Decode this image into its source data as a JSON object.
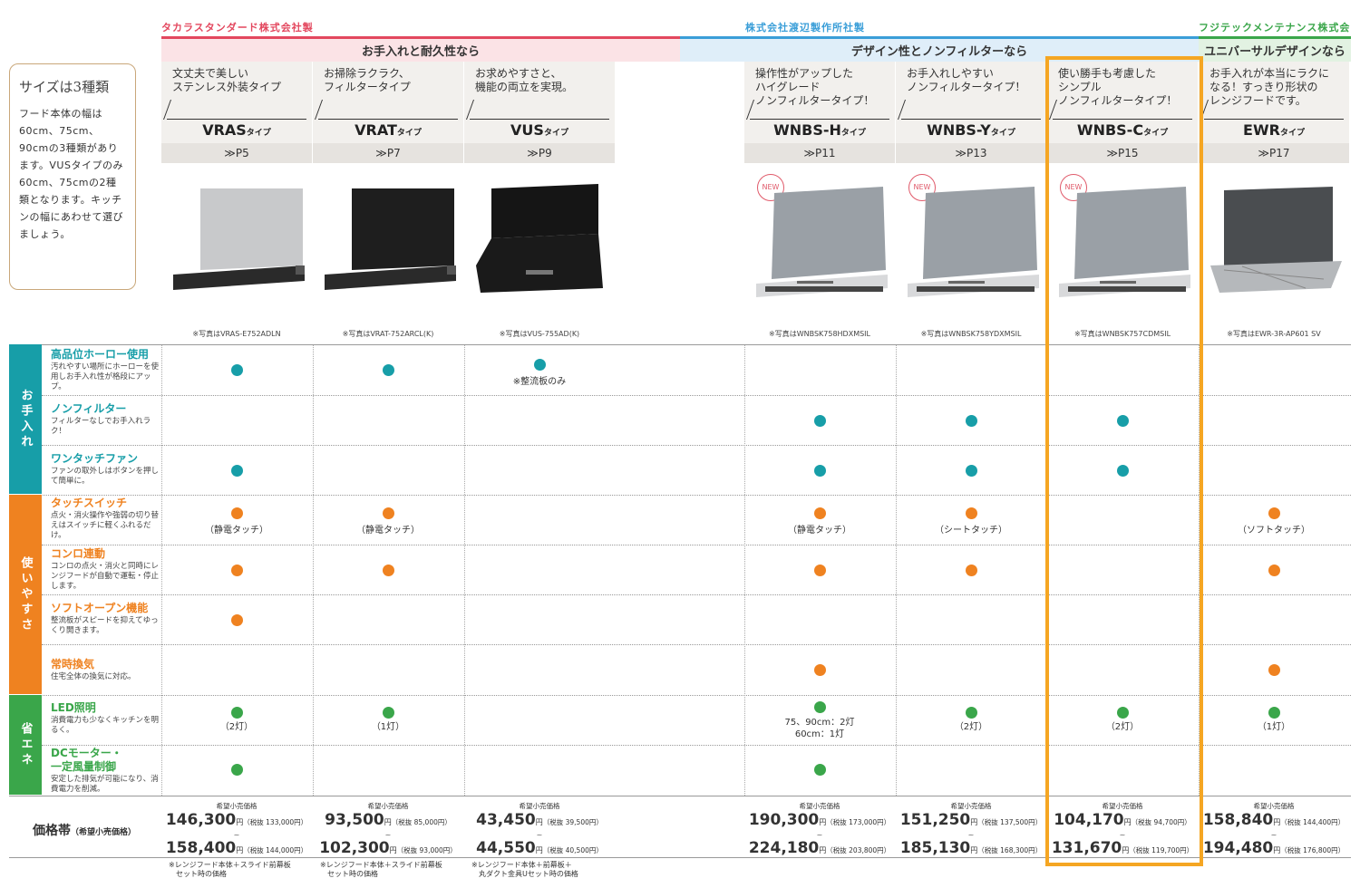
{
  "makers": [
    {
      "name": "タカラスタンダード株式会社製",
      "color": "#e3475e"
    },
    {
      "name": "株式会社渡辺製作所社製",
      "color": "#3a9ed8"
    },
    {
      "name": "フジテックメンテナンス株式会社製",
      "color": "#3aa64a"
    }
  ],
  "bands": [
    "お手入れと耐久性なら",
    "デザイン性とノンフィルターなら",
    "ユニバーサルデザインなら"
  ],
  "size_box": {
    "title": "サイズは3種類",
    "body": "フード本体の幅は60cm、75cm、90cmの3種類があります。VUSタイプのみ60cm、75cmの2種類となります。キッチンの幅にあわせて選びましょう。"
  },
  "products": [
    {
      "desc": "文丈夫で美しい\nステンレス外装タイプ",
      "name": "VRAS",
      "suffix": "タイプ",
      "page": "≫P5",
      "photo": "※写真はVRAS-E752ADLN",
      "new": ""
    },
    {
      "desc": "お掃除ラクラク、\nフィルタータイプ",
      "name": "VRAT",
      "suffix": "タイプ",
      "page": "≫P7",
      "photo": "※写真はVRAT-752ARCL(K)",
      "new": ""
    },
    {
      "desc": "お求めやすさと、\n機能の両立を実現。",
      "name": "VUS",
      "suffix": "タイプ",
      "page": "≫P9",
      "photo": "※写真はVUS-755AD(K)",
      "new": ""
    },
    {
      "desc": "操作性がアップした\nハイグレード\nノンフィルタータイプ！",
      "name": "WNBS-H",
      "suffix": "タイプ",
      "page": "≫P11",
      "photo": "※写真はWNBSK758HDXMSIL",
      "new": "NEW"
    },
    {
      "desc": "お手入れしやすい\nノンフィルタータイプ！",
      "name": "WNBS-Y",
      "suffix": "タイプ",
      "page": "≫P13",
      "photo": "※写真はWNBSK758YDXMSIL",
      "new": "NEW"
    },
    {
      "desc": "使い勝手も考慮した\nシンプル\nノンフィルタータイプ！",
      "name": "WNBS-C",
      "suffix": "タイプ",
      "page": "≫P15",
      "photo": "※写真はWNBSK757CDMSIL",
      "new": "NEW"
    },
    {
      "desc": "お手入れが本当にラクに\nなる！すっきり形状の\nレンジフードです。",
      "name": "EWR",
      "suffix": "タイプ",
      "page": "≫P17",
      "photo": "※写真はEWR-3R-AP601 SV",
      "new": ""
    }
  ],
  "categories": [
    {
      "label": "お手入れ",
      "color": "#179ea8"
    },
    {
      "label": "使いやすさ",
      "color": "#ef8220"
    },
    {
      "label": "省エネ",
      "color": "#3aa64a"
    }
  ],
  "features": [
    {
      "title": "高品位ホーロー使用",
      "desc": "汚れやすい場所にホーローを使用しお手入れ性が格段にアップ。",
      "color": "#179ea8"
    },
    {
      "title": "ノンフィルター",
      "desc": "フィルターなしでお手入れラク！",
      "color": "#179ea8"
    },
    {
      "title": "ワンタッチファン",
      "desc": "ファンの取外しはボタンを押して簡単に。",
      "color": "#179ea8"
    },
    {
      "title": "タッチスイッチ",
      "desc": "点火・消火操作や強弱の切り替えはスイッチに軽くふれるだけ。",
      "color": "#ef8220"
    },
    {
      "title": "コンロ連動",
      "desc": "コンロの点火・消火と同時にレンジフードが自動で運転・停止します。",
      "color": "#ef8220"
    },
    {
      "title": "ソフトオープン機能",
      "desc": "整流板がスピードを抑えてゆっくり開きます。",
      "color": "#ef8220"
    },
    {
      "title": "常時換気",
      "desc": "住宅全体の換気に対応。",
      "color": "#ef8220"
    },
    {
      "title": "LED照明",
      "desc": "消費電力も少なくキッチンを明るく。",
      "color": "#3aa64a"
    },
    {
      "title": "DCモーター・\n一定風量制御",
      "desc": "安定した排気が可能になり、消費電力を削減。",
      "color": "#3aa64a"
    }
  ],
  "notes": {
    "vus_enamel": "※整流板のみ",
    "touch": [
      "（静電タッチ）",
      "（静電タッチ）",
      "",
      "（静電タッチ）",
      "（シートタッチ）",
      "",
      "（ソフトタッチ）"
    ],
    "led": [
      "（2灯）",
      "（1灯）",
      "",
      "75、90cm：2灯\n60cm：1灯",
      "（2灯）",
      "（2灯）",
      "（1灯）"
    ]
  },
  "price_heading": "価格帯",
  "price_heading_sub": "（希望小売価格）",
  "price_label": "希望小売価格",
  "prices": [
    {
      "lo": "146,300",
      "lo_tax": "（税抜 133,000円）",
      "hi": "158,400",
      "hi_tax": "（税抜 144,000円）"
    },
    {
      "lo": "93,500",
      "lo_tax": "（税抜 85,000円）",
      "hi": "102,300",
      "hi_tax": "（税抜 93,000円）"
    },
    {
      "lo": "43,450",
      "lo_tax": "（税抜 39,500円）",
      "hi": "44,550",
      "hi_tax": "（税抜 40,500円）"
    },
    {
      "lo": "190,300",
      "lo_tax": "（税抜 173,000円）",
      "hi": "224,180",
      "hi_tax": "（税抜 203,800円）"
    },
    {
      "lo": "151,250",
      "lo_tax": "（税抜 137,500円）",
      "hi": "185,130",
      "hi_tax": "（税抜 168,300円）"
    },
    {
      "lo": "104,170",
      "lo_tax": "（税抜 94,700円）",
      "hi": "131,670",
      "hi_tax": "（税抜 119,700円）"
    },
    {
      "lo": "158,840",
      "lo_tax": "（税抜 144,400円）",
      "hi": "194,480",
      "hi_tax": "（税抜 176,800円）"
    }
  ],
  "yen": "円",
  "price_notes": [
    "※レンジフード本体＋スライド前幕板\n　セット時の価格",
    "※レンジフード本体＋スライド前幕板\n　セット時の価格",
    "※レンジフード本体＋前幕板＋\n　丸ダクト金具Uセット時の価格"
  ],
  "highlight_color": "#f5a623"
}
